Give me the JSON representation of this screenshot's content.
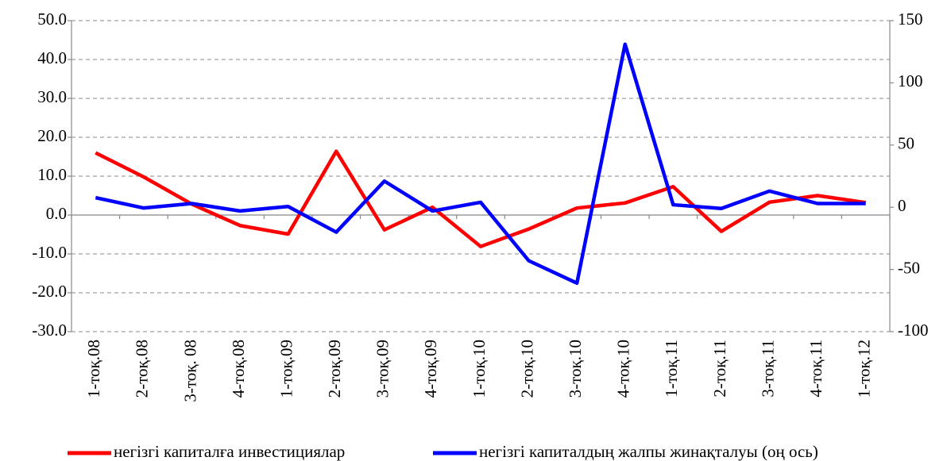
{
  "chart_data": {
    "type": "line",
    "categories": [
      "1-тоқ.08",
      "2-тоқ.08",
      "3-тоқ. 08",
      "4-тоқ.08",
      "1-тоқ.09",
      "2-тоқ.09",
      "3-тоқ.09",
      "4-тоқ.09",
      "1-тоқ.10",
      "2-тоқ.10",
      "3-тоқ.10",
      "4-тоқ.10",
      "1-тоқ.11",
      "2-тоқ.11",
      "3-тоқ.11",
      "4-тоқ.11",
      "1-тоқ.12"
    ],
    "series": [
      {
        "name": "негізгі капиталға инвестициялар",
        "color": "#ff0000",
        "values": [
          16.0,
          9.8,
          2.8,
          -2.7,
          -4.9,
          16.4,
          -3.8,
          2.0,
          -8.1,
          -3.6,
          1.8,
          3.1,
          7.3,
          -4.2,
          3.3,
          5.0,
          3.2
        ]
      },
      {
        "name": "негізгі капиталдың жалпы жинақталуы (оң ось)",
        "color": "#0000ff",
        "axis": "y2",
        "values": [
          7.7,
          -0.6,
          3,
          -3,
          0.6,
          -20,
          21,
          -3,
          4,
          -43,
          -61,
          131,
          2,
          -1,
          13,
          3,
          3
        ]
      }
    ],
    "ylim": [
      -30,
      50
    ],
    "yticks": [
      {
        "value": -30,
        "label": "-30.0"
      },
      {
        "value": -20,
        "label": "-20.0"
      },
      {
        "value": -10,
        "label": "-10.0"
      },
      {
        "value": 0,
        "label": "0.0"
      },
      {
        "value": 10,
        "label": "10.0"
      },
      {
        "value": 20,
        "label": "20.0"
      },
      {
        "value": 30,
        "label": "30.0"
      },
      {
        "value": 40,
        "label": "40.0"
      },
      {
        "value": 50,
        "label": "50.0"
      }
    ],
    "y2lim": [
      -100,
      150
    ],
    "y2ticks": [
      -100,
      -50,
      0,
      50,
      100,
      150
    ],
    "grid": true,
    "legend": "bottom"
  }
}
